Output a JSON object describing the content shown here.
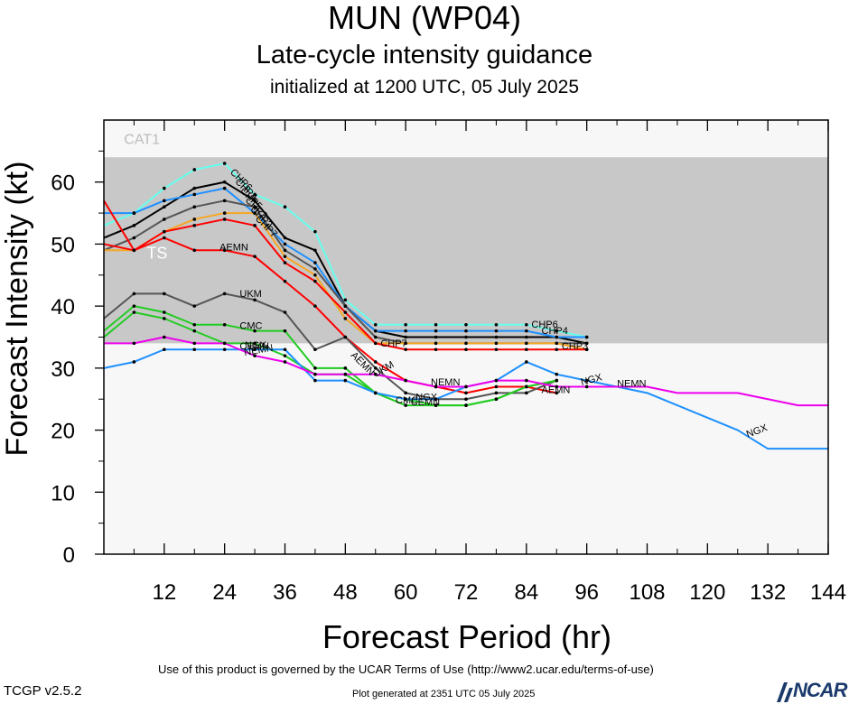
{
  "title": "MUN (WP04)",
  "subtitle": "Late-cycle intensity guidance",
  "init_line": "initialized at 1200 UTC, 05 July 2025",
  "footer": {
    "terms": "Use of this product is governed by the UCAR Terms of Use (http://www2.ucar.edu/terms-of-use)",
    "version": "TCGP v2.5.2",
    "generated": "Plot generated at 2351 UTC   05 July 2025",
    "logo_text": "NCAR"
  },
  "chart_data": {
    "type": "line",
    "xlabel": "Forecast Period (hr)",
    "ylabel": "Forecast Intensity (kt)",
    "xlim": [
      0,
      144
    ],
    "ylim": [
      0,
      70
    ],
    "xticks": [
      12,
      24,
      36,
      48,
      60,
      72,
      84,
      96,
      108,
      120,
      132,
      144
    ],
    "yticks": [
      0,
      10,
      20,
      30,
      40,
      50,
      60
    ],
    "bands": [
      {
        "name": "TS",
        "from": 34,
        "to": 64,
        "color": "#ffffff"
      },
      {
        "name": "CAT1",
        "from": 64,
        "to": 70,
        "color": "#f5f5f5"
      }
    ],
    "ts_band": {
      "from": 34,
      "to": 64,
      "color": "#c8c8c8"
    },
    "band_labels": [
      {
        "text": "CAT1",
        "x": 4,
        "y": 67
      },
      {
        "text": "TS",
        "x": 8.5,
        "y": 48.5
      }
    ],
    "series": [
      {
        "color": "#66ffee",
        "x": [
          0,
          6,
          12,
          18,
          24,
          30,
          36,
          42,
          48,
          54,
          60,
          66,
          72,
          78,
          84,
          90,
          96
        ],
        "y": [
          53,
          55,
          59,
          62,
          63,
          58,
          56,
          52,
          41,
          37,
          37,
          37,
          37,
          37,
          37,
          36,
          35
        ],
        "labels": [
          {
            "text": "CHP6",
            "x": 25,
            "y": 61.5,
            "angle": 45
          },
          {
            "text": "CHP6",
            "x": 85,
            "y": 36.5,
            "angle": 0
          }
        ]
      },
      {
        "color": "#000000",
        "x": [
          0,
          6,
          12,
          18,
          24,
          30,
          36,
          42,
          48,
          54,
          60,
          66,
          72,
          78,
          84,
          90,
          96
        ],
        "y": [
          51,
          53,
          56,
          59,
          60,
          57,
          51,
          49,
          40,
          36,
          35,
          35,
          35,
          35,
          35,
          35,
          34
        ],
        "labels": [
          {
            "text": "CHP4",
            "x": 26,
            "y": 60,
            "angle": 45
          },
          {
            "text": "CHP4",
            "x": 87,
            "y": 35.5,
            "angle": 0
          }
        ]
      },
      {
        "color": "#1e90ff",
        "x": [
          0,
          6,
          12,
          18,
          24,
          30,
          36,
          42,
          48,
          54,
          60,
          66,
          72,
          78,
          84,
          90,
          96
        ],
        "y": [
          55,
          55,
          57,
          58,
          59,
          55,
          50,
          47,
          40,
          36,
          36,
          36,
          36,
          36,
          36,
          35,
          35
        ],
        "labels": [
          {
            "text": "CHP5",
            "x": 27,
            "y": 58.5,
            "angle": 45
          }
        ]
      },
      {
        "color": "#555555",
        "x": [
          0,
          6,
          12,
          18,
          24,
          30,
          36,
          42,
          48,
          54,
          60,
          66,
          72,
          78,
          84,
          90,
          96
        ],
        "y": [
          49,
          51,
          54,
          56,
          57,
          56,
          49,
          46,
          40,
          35,
          34,
          34,
          34,
          34,
          34,
          34,
          34
        ],
        "labels": [
          {
            "text": "CHP3",
            "x": 28,
            "y": 57,
            "angle": 45
          }
        ]
      },
      {
        "color": "#f5a623",
        "x": [
          0,
          6,
          12,
          18,
          24,
          30,
          36,
          42,
          48,
          54,
          60,
          66,
          72,
          78,
          84,
          90,
          96
        ],
        "y": [
          49,
          49,
          52,
          54,
          55,
          55,
          48,
          45,
          38,
          34,
          34,
          34,
          34,
          34,
          34,
          34,
          33
        ],
        "labels": [
          {
            "text": "CHP2",
            "x": 29,
            "y": 55.5,
            "angle": 45
          }
        ]
      },
      {
        "color": "#ff0000",
        "x": [
          0,
          6,
          12,
          18,
          24,
          30,
          36,
          42,
          48,
          54,
          60,
          66,
          72,
          78,
          84,
          90,
          96
        ],
        "y": [
          50,
          49,
          52,
          53,
          54,
          53,
          47,
          44,
          39,
          34,
          33,
          33,
          33,
          33,
          33,
          33,
          33
        ],
        "labels": [
          {
            "text": "CHP7",
            "x": 30,
            "y": 54,
            "angle": 45
          },
          {
            "text": "CHP7",
            "x": 55,
            "y": 33.5,
            "angle": 0
          },
          {
            "text": "CHP3",
            "x": 91,
            "y": 33,
            "angle": 0
          }
        ]
      },
      {
        "color": "#ff0000",
        "x": [
          0,
          6,
          12,
          18,
          24,
          30,
          36,
          42,
          48,
          54,
          60,
          66,
          72,
          78,
          84,
          90
        ],
        "y": [
          57,
          49,
          51,
          49,
          49,
          48,
          44,
          40,
          35,
          31,
          28,
          27,
          26,
          27,
          27,
          26
        ],
        "labels": [
          {
            "text": "AEMN",
            "x": 23,
            "y": 49,
            "angle": 0
          },
          {
            "text": "AEMN",
            "x": 49,
            "y": 32,
            "angle": 45
          },
          {
            "text": "AEMN",
            "x": 87,
            "y": 26,
            "angle": 0
          }
        ]
      },
      {
        "color": "#555555",
        "x": [
          0,
          6,
          12,
          18,
          24,
          30,
          36,
          42,
          48,
          54,
          60,
          66,
          72,
          78,
          84,
          90
        ],
        "y": [
          38,
          42,
          42,
          40,
          42,
          41,
          39,
          33,
          35,
          30,
          26,
          25,
          25,
          26,
          26,
          28
        ],
        "labels": [
          {
            "text": "UKM",
            "x": 27,
            "y": 41.5,
            "angle": 0
          },
          {
            "text": "UKM",
            "x": 54,
            "y": 28.5,
            "angle": -30
          }
        ]
      },
      {
        "color": "#22cc22",
        "x": [
          0,
          6,
          12,
          18,
          24,
          30,
          36,
          42,
          48,
          54,
          60,
          66,
          72,
          78,
          84,
          90
        ],
        "y": [
          36,
          40,
          39,
          37,
          37,
          36,
          36,
          30,
          30,
          26,
          25,
          24,
          24,
          25,
          27,
          28
        ],
        "labels": [
          {
            "text": "CMC",
            "x": 27,
            "y": 36.3,
            "angle": 0
          },
          {
            "text": "CMC",
            "x": 58,
            "y": 24.3,
            "angle": 0
          }
        ]
      },
      {
        "color": "#22cc22",
        "x": [
          0,
          6,
          12,
          18,
          24,
          30,
          36,
          42,
          48,
          54,
          60,
          66,
          72,
          78,
          84,
          90
        ],
        "y": [
          35,
          39,
          38,
          36,
          34,
          34,
          32,
          29,
          29,
          26,
          24,
          24,
          24,
          25,
          27,
          28
        ],
        "labels": [
          {
            "text": "CEMN",
            "x": 61,
            "y": 24,
            "angle": 0
          },
          {
            "text": "CEMN",
            "x": 27,
            "y": 33,
            "angle": 0
          }
        ]
      },
      {
        "color": "#1e90ff",
        "x": [
          0,
          6,
          12,
          18,
          24,
          30,
          36,
          42,
          48,
          54,
          60,
          66,
          72,
          78,
          84,
          90,
          96,
          102,
          108,
          114,
          120,
          126,
          132,
          138,
          144
        ],
        "y": [
          30,
          31,
          33,
          33,
          33,
          33,
          33,
          28,
          28,
          26,
          25,
          25,
          27,
          28,
          31,
          29,
          28,
          27,
          26,
          24,
          22,
          20,
          17,
          17,
          17
        ],
        "labels": [
          {
            "text": "NGX",
            "x": 28,
            "y": 33.2,
            "angle": 0
          },
          {
            "text": "NGX",
            "x": 62,
            "y": 24.8,
            "angle": 0
          },
          {
            "text": "NGX",
            "x": 95,
            "y": 27.2,
            "angle": -15
          },
          {
            "text": "NGX",
            "x": 128,
            "y": 18.8,
            "angle": -20
          }
        ]
      },
      {
        "color": "#ee00ee",
        "x": [
          0,
          6,
          12,
          18,
          24,
          30,
          36,
          42,
          48,
          54,
          60,
          66,
          72,
          78,
          84,
          90,
          96,
          102,
          108,
          114,
          120,
          126,
          132,
          138,
          144
        ],
        "y": [
          34,
          34,
          35,
          34,
          34,
          32,
          31,
          29,
          29,
          29,
          28,
          27,
          27,
          28,
          28,
          27,
          27,
          27,
          27,
          26,
          26,
          26,
          25,
          24,
          24
        ],
        "labels": [
          {
            "text": "NEMN",
            "x": 28,
            "y": 32,
            "angle": -10
          },
          {
            "text": "NEMN",
            "x": 65,
            "y": 27.2,
            "angle": 0
          },
          {
            "text": "NEMN",
            "x": 102,
            "y": 27,
            "angle": 0
          }
        ]
      }
    ]
  }
}
